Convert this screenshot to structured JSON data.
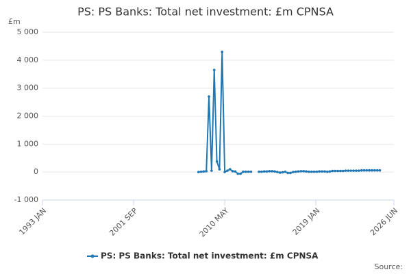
{
  "chart_data": {
    "type": "line",
    "title": "PS: PS Banks: Total net investment: £m CPNSA",
    "y_unit": "£m",
    "source": "Source:",
    "x": [
      "2007 NOV",
      "2008 FEB",
      "2008 MAY",
      "2008 AUG",
      "2008 NOV",
      "2009 FEB",
      "2009 MAY",
      "2009 AUG",
      "2009 NOV",
      "2010 FEB",
      "2010 MAY",
      "2010 AUG",
      "2010 NOV",
      "2011 FEB",
      "2011 MAY",
      "2011 AUG",
      "2011 NOV",
      "2012 FEB",
      "2012 MAY",
      "2012 AUG",
      "2012 NOV",
      "2013 FEB",
      "2013 MAY",
      "2013 AUG",
      "2013 NOV",
      "2014 FEB",
      "2014 MAY",
      "2014 AUG",
      "2014 NOV",
      "2015 FEB",
      "2015 MAY",
      "2015 AUG",
      "2015 NOV",
      "2016 FEB",
      "2016 MAY",
      "2016 AUG",
      "2016 NOV",
      "2017 FEB",
      "2017 MAY",
      "2017 AUG",
      "2017 NOV",
      "2018 FEB",
      "2018 MAY",
      "2018 AUG",
      "2018 NOV",
      "2019 FEB",
      "2019 MAY",
      "2019 AUG",
      "2019 NOV",
      "2020 FEB",
      "2020 MAY",
      "2020 AUG",
      "2020 NOV",
      "2021 FEB",
      "2021 MAY",
      "2021 AUG",
      "2021 NOV",
      "2022 FEB",
      "2022 MAY",
      "2022 AUG",
      "2022 NOV",
      "2023 FEB",
      "2023 MAY",
      "2023 AUG",
      "2023 NOV",
      "2024 FEB",
      "2024 MAY",
      "2024 AUG",
      "2024 NOV",
      "2025 FEB"
    ],
    "series": [
      {
        "name": "PS: PS Banks: Total net investment: £m CPNSA",
        "color": "#1f77b4",
        "values": [
          0,
          10,
          20,
          30,
          2700,
          50,
          3650,
          380,
          100,
          4300,
          0,
          50,
          100,
          30,
          20,
          -60,
          -60,
          10,
          10,
          10,
          10,
          null,
          null,
          10,
          10,
          20,
          20,
          30,
          30,
          20,
          0,
          -20,
          -10,
          10,
          -30,
          -30,
          0,
          10,
          20,
          30,
          30,
          20,
          10,
          10,
          10,
          10,
          20,
          20,
          20,
          10,
          20,
          40,
          40,
          40,
          40,
          40,
          50,
          50,
          50,
          50,
          50,
          50,
          60,
          60,
          60,
          60,
          60,
          60,
          60,
          60
        ]
      }
    ],
    "xlim": [
      "1993 JAN",
      "2026 JUN"
    ],
    "xticks": [
      "1993 JAN",
      "2001 SEP",
      "2010 MAY",
      "2019 JAN",
      "2026 JUN"
    ],
    "ylim": [
      -1000,
      5000
    ],
    "yticks": [
      {
        "value": -1000,
        "label": "-1 000"
      },
      0,
      {
        "value": 1000,
        "label": "1 000"
      },
      {
        "value": 2000,
        "label": "2 000"
      },
      {
        "value": 3000,
        "label": "3 000"
      },
      {
        "value": 4000,
        "label": "4 000"
      },
      {
        "value": 5000,
        "label": "5 000"
      }
    ],
    "grid": true,
    "legend": "bottom"
  }
}
